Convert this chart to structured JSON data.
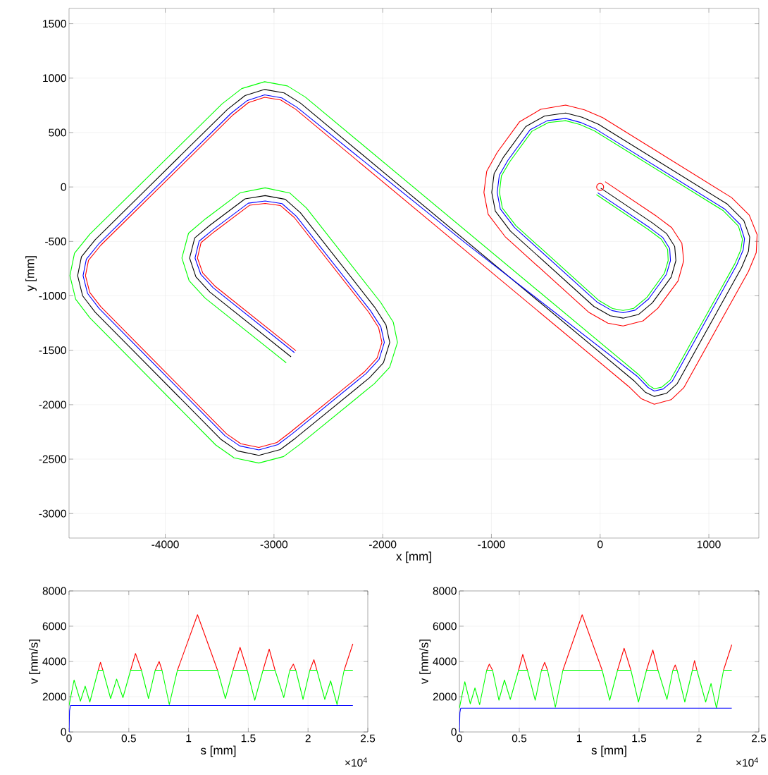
{
  "chart_data": [
    {
      "type": "line",
      "xlabel": "x [mm]",
      "ylabel": "y [mm]",
      "xlim": [
        -4885,
        1460
      ],
      "ylim": [
        -3225,
        1640
      ],
      "xticks": [
        -4000,
        -3000,
        -2000,
        -1000,
        0,
        1000
      ],
      "yticks": [
        -3000,
        -2500,
        -2000,
        -1500,
        -1000,
        -500,
        0,
        500,
        1000,
        1500
      ],
      "grid": true,
      "series": [
        {
          "color": "#000000",
          "x": [
            -2843,
            -3590,
            -3718,
            -3776,
            -3729,
            -3590,
            -3266,
            -3081,
            -2896,
            -2757,
            -2074,
            -1970,
            -1935,
            -1993,
            -2121,
            -2803,
            -2942,
            -3139,
            -3336,
            -3486,
            -4644,
            -4760,
            -4806,
            -4771,
            -4644,
            -3428,
            -3266,
            -3086,
            -2907,
            -2757,
            308,
            416,
            498,
            610,
            707,
            1301,
            1365,
            1376,
            1322,
            1171,
            -15,
            -166,
            -317,
            -511,
            -684,
            -889,
            -975,
            -997,
            -964,
            -824,
            -58,
            93,
            211,
            352,
            481,
            654,
            697,
            686,
            610,
            481,
            6
          ],
          "values": [
            -1560,
            -965,
            -826,
            -653,
            -468,
            -352,
            -109,
            -79,
            -113,
            -236,
            -1104,
            -1266,
            -1428,
            -1614,
            -1752,
            -2308,
            -2412,
            -2465,
            -2424,
            -2320,
            -1151,
            -1000,
            -815,
            -641,
            -484,
            713,
            840,
            896,
            864,
            771,
            -1777,
            -1885,
            -1924,
            -1896,
            -1809,
            -741,
            -589,
            -460,
            -309,
            -158,
            576,
            641,
            680,
            652,
            555,
            274,
            123,
            -50,
            -222,
            -406,
            -1097,
            -1183,
            -1205,
            -1172,
            -1064,
            -827,
            -676,
            -546,
            -427,
            -330,
            -11
          ]
        },
        {
          "color": "#0000ff",
          "x": [
            -2812,
            -3559,
            -3674,
            -3726,
            -3689,
            -3560,
            -3236,
            -3081,
            -2926,
            -2796,
            -2113,
            -2017,
            -1985,
            -2033,
            -2152,
            -2834,
            -2964,
            -3139,
            -3314,
            -3451,
            -4609,
            -4715,
            -4756,
            -4726,
            -4609,
            -3393,
            -3244,
            -3086,
            -2929,
            -2789,
            -1245,
            340,
            441,
            498,
            580,
            664,
            1257,
            1316,
            1328,
            1287,
            1144,
            -42,
            -181,
            -317,
            -486,
            -644,
            -849,
            -927,
            -947,
            -918,
            -789,
            -24,
            108,
            211,
            322,
            446,
            610,
            647,
            640,
            577,
            453,
            -22
          ],
          "values": [
            -1521,
            -926,
            -801,
            -653,
            -498,
            -392,
            -149,
            -129,
            -153,
            -267,
            -1135,
            -1284,
            -1428,
            -1584,
            -1713,
            -2269,
            -2367,
            -2415,
            -2379,
            -2285,
            -1116,
            -977,
            -815,
            -664,
            -519,
            678,
            795,
            846,
            819,
            732,
            -510,
            -1738,
            -1842,
            -1874,
            -1856,
            -1784,
            -716,
            -579,
            -475,
            -344,
            -201,
            533,
            593,
            630,
            609,
            525,
            244,
            108,
            -50,
            -202,
            -371,
            -1060,
            -1135,
            -1155,
            -1132,
            -1029,
            -802,
            -676,
            -566,
            -465,
            -372,
            -53
          ]
        },
        {
          "color": "#ff0000",
          "x": [
            -2798,
            -3545,
            -3655,
            -3704,
            -3671,
            -3547,
            -3223,
            -3081,
            -2939,
            -2813,
            -2130,
            -2038,
            -2007,
            -2051,
            -2166,
            -2848,
            -2973,
            -3139,
            -3305,
            -3435,
            -4593,
            -4695,
            -4734,
            -4706,
            -4593,
            -3377,
            -3235,
            -3086,
            -2938,
            -2803,
            262,
            380,
            498,
            653,
            769,
            1364,
            1436,
            1444,
            1372,
            1209,
            23,
            -144,
            -317,
            -547,
            -742,
            -947,
            -1043,
            -1069,
            -1030,
            -874,
            -106,
            71,
            211,
            395,
            531,
            717,
            769,
            752,
            658,
            521,
            46
          ],
          "values": [
            -1504,
            -909,
            -790,
            -653,
            -511,
            -410,
            -167,
            -151,
            -171,
            -281,
            -1149,
            -1291,
            -1428,
            -1571,
            -1696,
            -2252,
            -2347,
            -2393,
            -2359,
            -2269,
            -1100,
            -968,
            -815,
            -673,
            -535,
            662,
            775,
            824,
            799,
            716,
            -1832,
            -1946,
            -1996,
            -1954,
            -1845,
            -776,
            -603,
            -438,
            -259,
            -97,
            637,
            709,
            752,
            713,
            598,
            317,
            145,
            -50,
            -251,
            -456,
            -1150,
            -1251,
            -1277,
            -1230,
            -1114,
            -863,
            -676,
            -517,
            -373,
            -270,
            49
          ]
        },
        {
          "color": "#00ff00",
          "x": [
            -2887,
            -3634,
            -3780,
            -3847,
            -3786,
            -3633,
            -3309,
            -3081,
            -2853,
            -2702,
            -2019,
            -1903,
            -1864,
            -1936,
            -2077,
            -2759,
            -2911,
            -3139,
            -3367,
            -3536,
            -4694,
            -4824,
            -4877,
            -4835,
            -4694,
            -3478,
            -3297,
            -3086,
            -2876,
            -2712,
            353,
            452,
            498,
            567,
            646,
            1239,
            1295,
            1309,
            1272,
            1133,
            -53,
            -187,
            -317,
            -475,
            -627,
            -832,
            -908,
            -926,
            -899,
            -774,
            -10,
            114,
            211,
            309,
            431,
            592,
            626,
            621,
            563,
            441,
            -34
          ],
          "values": [
            -1615,
            -1020,
            -862,
            -653,
            -425,
            -295,
            -52,
            -8,
            -56,
            -192,
            -1060,
            -1241,
            -1428,
            -1657,
            -1807,
            -2363,
            -2476,
            -2536,
            -2488,
            -2370,
            -1201,
            -1032,
            -815,
            -609,
            -434,
            763,
            904,
            967,
            928,
            826,
            -1722,
            -1825,
            -1853,
            -1839,
            -1773,
            -706,
            -575,
            -481,
            -359,
            -218,
            516,
            574,
            609,
            592,
            512,
            231,
            102,
            -50,
            -194,
            -356,
            -1044,
            -1116,
            -1134,
            -1115,
            -1014,
            -791,
            -676,
            -574,
            -480,
            -389,
            -70
          ]
        },
        {
          "type": "scatter",
          "marker": "circle",
          "color": "#ff0000",
          "x": [
            0
          ],
          "values": [
            0
          ]
        }
      ]
    },
    {
      "type": "line",
      "xlabel": "s [mm]",
      "ylabel": "v [mm/s]",
      "xlim": [
        0,
        2.5
      ],
      "ylim": [
        0,
        8000
      ],
      "xticks": [
        0,
        0.5,
        1,
        1.5,
        2,
        2.5
      ],
      "yticks": [
        0,
        2000,
        4000,
        6000,
        8000
      ],
      "grid": true,
      "annotations": [
        "×10$^{4}$"
      ],
      "series": [
        {
          "color": "#ff0000",
          "x": [
            0.244,
            0.263,
            0.283,
            0.4,
            0.515,
            0.556,
            0.606,
            0.65,
            0.721,
            0.754,
            0.778,
            0.85,
            0.907,
            1.075,
            1.243,
            1.3,
            1.372,
            1.431,
            1.491,
            1.55,
            1.623,
            1.675,
            1.724,
            1.8,
            1.847,
            1.877,
            1.898,
            1.95,
            2.015,
            2.049,
            2.074,
            2.2,
            2.302,
            2.375
          ],
          "values": [
            3500,
            3950,
            3500,
            null,
            3500,
            4450,
            3500,
            null,
            3500,
            4000,
            3500,
            null,
            3500,
            6650,
            3500,
            null,
            3500,
            4800,
            3500,
            null,
            3500,
            4700,
            3500,
            null,
            3500,
            3850,
            3500,
            null,
            3500,
            4100,
            3500,
            null,
            3500,
            5000
          ]
        },
        {
          "color": "#00ff00",
          "x": [
            0,
            0.042,
            0.095,
            0.135,
            0.174,
            0.244,
            0.283,
            0.348,
            0.398,
            0.451,
            0.515,
            0.606,
            0.665,
            0.721,
            0.778,
            0.839,
            0.907,
            1.243,
            1.308,
            1.372,
            1.491,
            1.554,
            1.623,
            1.724,
            1.797,
            1.847,
            1.898,
            1.958,
            2.015,
            2.074,
            2.14,
            2.189,
            2.243,
            2.302,
            2.375
          ],
          "values": [
            1500,
            2950,
            1750,
            2600,
            1700,
            3500,
            3500,
            1900,
            3000,
            1950,
            3500,
            3500,
            1900,
            3500,
            3500,
            1550,
            3500,
            3500,
            1900,
            3500,
            3500,
            1800,
            3500,
            3500,
            1950,
            3500,
            3500,
            1850,
            3500,
            3500,
            1850,
            2900,
            1550,
            3500,
            3500
          ]
        },
        {
          "color": "#0000ff",
          "x": [
            0,
            0.004,
            0.012,
            2.375
          ],
          "values": [
            0,
            1200,
            1500,
            1500
          ]
        }
      ]
    },
    {
      "type": "line",
      "xlabel": "s [mm]",
      "ylabel": "v [mm/s]",
      "xlim": [
        0,
        2.5
      ],
      "ylim": [
        0,
        8000
      ],
      "xticks": [
        0,
        0.5,
        1,
        1.5,
        2,
        2.5
      ],
      "yticks": [
        0,
        2000,
        4000,
        6000,
        8000
      ],
      "grid": true,
      "annotations": [
        "×10$^{4}$"
      ],
      "series": [
        {
          "color": "#ff0000",
          "x": [
            0.228,
            0.25,
            0.277,
            0.4,
            0.494,
            0.529,
            0.568,
            0.63,
            0.685,
            0.712,
            0.736,
            0.8,
            0.864,
            1.025,
            1.192,
            1.25,
            1.32,
            1.375,
            1.432,
            1.5,
            1.562,
            1.615,
            1.658,
            1.7,
            1.782,
            1.802,
            1.818,
            1.9,
            1.945,
            1.963,
            1.983,
            2.1,
            2.205,
            2.274
          ],
          "values": [
            3500,
            3850,
            3500,
            null,
            3500,
            4400,
            3500,
            null,
            3500,
            3950,
            3500,
            null,
            3500,
            6650,
            3500,
            null,
            3500,
            4750,
            3500,
            null,
            3500,
            4650,
            3500,
            null,
            3500,
            3800,
            3500,
            null,
            3500,
            4050,
            3500,
            null,
            3500,
            4950
          ]
        },
        {
          "color": "#00ff00",
          "x": [
            0,
            0.045,
            0.091,
            0.13,
            0.169,
            0.228,
            0.277,
            0.33,
            0.376,
            0.425,
            0.494,
            0.568,
            0.633,
            0.685,
            0.736,
            0.801,
            0.864,
            1.192,
            1.255,
            1.32,
            1.432,
            1.495,
            1.562,
            1.658,
            1.733,
            1.782,
            1.818,
            1.882,
            1.945,
            1.983,
            2.056,
            2.101,
            2.146,
            2.205,
            2.274
          ],
          "values": [
            1350,
            2850,
            1600,
            2500,
            1550,
            3500,
            3500,
            1800,
            2950,
            1850,
            3500,
            3500,
            1800,
            3500,
            3500,
            1400,
            3500,
            3500,
            1800,
            3500,
            3500,
            1700,
            3500,
            3500,
            1850,
            3500,
            3500,
            1700,
            3500,
            3500,
            1700,
            2750,
            1350,
            3500,
            3500
          ]
        },
        {
          "color": "#0000ff",
          "x": [
            0,
            0.004,
            0.011,
            2.274
          ],
          "values": [
            0,
            1100,
            1350,
            1350
          ]
        }
      ]
    }
  ]
}
